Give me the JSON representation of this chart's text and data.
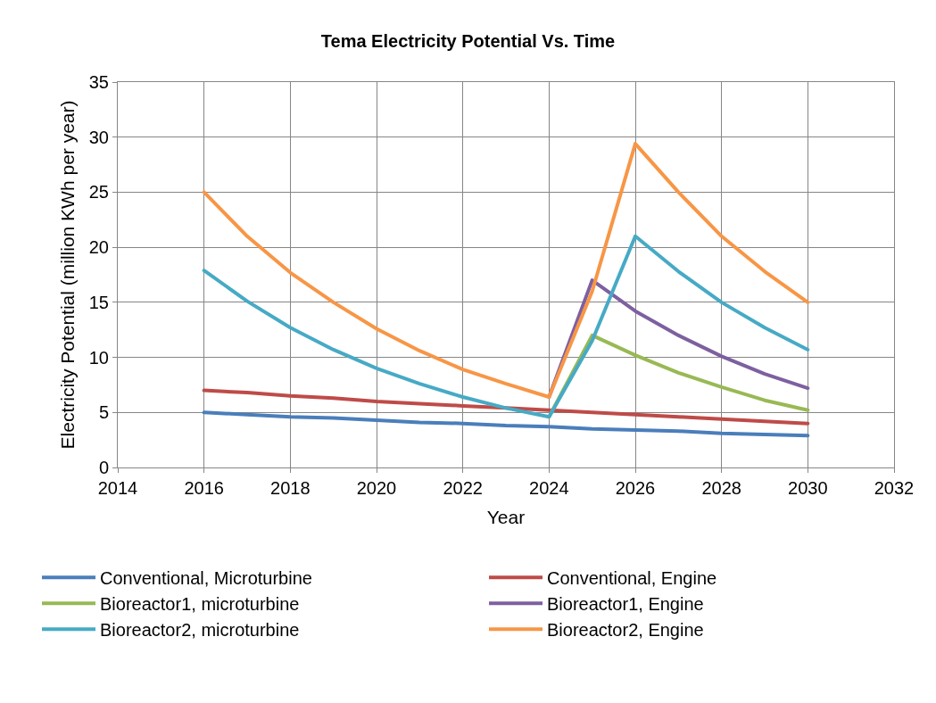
{
  "chart_data": {
    "type": "line",
    "title": "Tema Electricity Potential Vs. Time",
    "xlabel": "Year",
    "ylabel": "Electricity Potential (million KWh per year)",
    "x": [
      2016,
      2017,
      2018,
      2019,
      2020,
      2021,
      2022,
      2023,
      2024,
      2025,
      2026,
      2027,
      2028,
      2029,
      2030
    ],
    "series": [
      {
        "name": "Conventional, Microturbine",
        "color": "#4a7ebb",
        "values": [
          5.0,
          4.8,
          4.6,
          4.5,
          4.3,
          4.1,
          4.0,
          3.8,
          3.7,
          3.5,
          3.4,
          3.3,
          3.1,
          3.0,
          2.9
        ]
      },
      {
        "name": "Conventional, Engine",
        "color": "#be4b48",
        "values": [
          7.0,
          6.8,
          6.5,
          6.3,
          6.0,
          5.8,
          5.6,
          5.4,
          5.2,
          5.0,
          4.8,
          4.6,
          4.4,
          4.2,
          4.0
        ]
      },
      {
        "name": "Bioreactor1, microturbine",
        "color": "#98b954",
        "values": [
          null,
          null,
          null,
          null,
          null,
          null,
          null,
          null,
          4.6,
          12.0,
          10.2,
          8.6,
          7.3,
          6.1,
          5.2
        ]
      },
      {
        "name": "Bioreactor1, Engine",
        "color": "#7d60a0",
        "values": [
          null,
          null,
          null,
          null,
          null,
          null,
          null,
          null,
          6.4,
          17.0,
          14.2,
          12.0,
          10.1,
          8.5,
          7.2
        ]
      },
      {
        "name": "Bioreactor2, microturbine",
        "color": "#46aac5",
        "values": [
          17.9,
          15.1,
          12.7,
          10.7,
          9.0,
          7.6,
          6.4,
          5.4,
          4.6,
          11.5,
          21.0,
          17.8,
          15.0,
          12.7,
          10.7
        ]
      },
      {
        "name": "Bioreactor2, Engine",
        "color": "#f79646",
        "values": [
          25.0,
          21.0,
          17.7,
          15.0,
          12.6,
          10.6,
          8.9,
          7.6,
          6.4,
          16.0,
          29.4,
          25.0,
          21.0,
          17.8,
          15.0
        ]
      }
    ],
    "xlim": [
      2014,
      2032
    ],
    "xticks": [
      2014,
      2016,
      2018,
      2020,
      2022,
      2024,
      2026,
      2028,
      2030,
      2032
    ],
    "ylim": [
      0,
      35
    ],
    "yticks": [
      0,
      5,
      10,
      15,
      20,
      25,
      30,
      35
    ],
    "grid": true,
    "legend": "bottom",
    "marker": "none",
    "line_style": "solid"
  }
}
